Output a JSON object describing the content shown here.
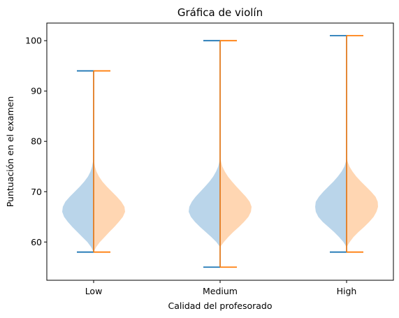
{
  "chart_data": {
    "type": "violin",
    "title": "Gráfica de violín",
    "xlabel": "Calidad del profesorado",
    "ylabel": "Puntuación en el examen",
    "categories": [
      "Low",
      "Medium",
      "High"
    ],
    "ylim": [
      52.4,
      103.5
    ],
    "yticks": [
      60,
      70,
      80,
      90,
      100
    ],
    "grid": false,
    "legend": "none",
    "series": [
      {
        "side": "left",
        "color": "#1f77b4",
        "fill": "#bad5ea",
        "violins": [
          {
            "min": 58,
            "max": 94,
            "profile": [
              [
                58,
                0.0
              ],
              [
                59,
                0.08
              ],
              [
                60,
                0.2
              ],
              [
                61,
                0.36
              ],
              [
                62,
                0.52
              ],
              [
                63,
                0.68
              ],
              [
                64,
                0.82
              ],
              [
                65,
                0.94
              ],
              [
                66,
                1.0
              ],
              [
                67,
                0.98
              ],
              [
                68,
                0.9
              ],
              [
                69,
                0.76
              ],
              [
                70,
                0.6
              ],
              [
                71,
                0.44
              ],
              [
                72,
                0.3
              ],
              [
                73,
                0.18
              ],
              [
                74,
                0.1
              ],
              [
                75,
                0.05
              ],
              [
                76,
                0.02
              ],
              [
                78,
                0.0
              ]
            ]
          },
          {
            "min": 55,
            "max": 100,
            "profile": [
              [
                59,
                0.0
              ],
              [
                60,
                0.12
              ],
              [
                61,
                0.28
              ],
              [
                62,
                0.46
              ],
              [
                63,
                0.64
              ],
              [
                64,
                0.8
              ],
              [
                65,
                0.93
              ],
              [
                66,
                1.0
              ],
              [
                67,
                0.98
              ],
              [
                68,
                0.9
              ],
              [
                69,
                0.78
              ],
              [
                70,
                0.63
              ],
              [
                71,
                0.48
              ],
              [
                72,
                0.34
              ],
              [
                73,
                0.22
              ],
              [
                74,
                0.13
              ],
              [
                75,
                0.06
              ],
              [
                76,
                0.02
              ],
              [
                77,
                0.0
              ]
            ]
          },
          {
            "min": 58,
            "max": 101,
            "profile": [
              [
                59,
                0.0
              ],
              [
                60,
                0.1
              ],
              [
                61,
                0.24
              ],
              [
                62,
                0.4
              ],
              [
                63,
                0.58
              ],
              [
                64,
                0.76
              ],
              [
                65,
                0.9
              ],
              [
                66,
                0.98
              ],
              [
                67,
                1.0
              ],
              [
                68,
                0.98
              ],
              [
                69,
                0.88
              ],
              [
                70,
                0.74
              ],
              [
                71,
                0.58
              ],
              [
                72,
                0.42
              ],
              [
                73,
                0.28
              ],
              [
                74,
                0.16
              ],
              [
                75,
                0.07
              ],
              [
                76,
                0.02
              ],
              [
                77,
                0.0
              ]
            ]
          }
        ]
      },
      {
        "side": "right",
        "color": "#ff7f0e",
        "fill": "#ffd6b2",
        "violins": [
          {
            "min": 58,
            "max": 94,
            "profile": [
              [
                58,
                0.0
              ],
              [
                59,
                0.08
              ],
              [
                60,
                0.2
              ],
              [
                61,
                0.35
              ],
              [
                62,
                0.5
              ],
              [
                63,
                0.66
              ],
              [
                64,
                0.8
              ],
              [
                65,
                0.93
              ],
              [
                66,
                1.0
              ],
              [
                67,
                0.98
              ],
              [
                68,
                0.88
              ],
              [
                69,
                0.74
              ],
              [
                70,
                0.58
              ],
              [
                71,
                0.42
              ],
              [
                72,
                0.28
              ],
              [
                73,
                0.17
              ],
              [
                74,
                0.09
              ],
              [
                75,
                0.04
              ],
              [
                76,
                0.01
              ],
              [
                77,
                0.0
              ]
            ]
          },
          {
            "min": 55,
            "max": 100,
            "profile": [
              [
                59,
                0.0
              ],
              [
                60,
                0.12
              ],
              [
                61,
                0.26
              ],
              [
                62,
                0.42
              ],
              [
                63,
                0.6
              ],
              [
                64,
                0.76
              ],
              [
                65,
                0.9
              ],
              [
                66,
                0.98
              ],
              [
                67,
                1.0
              ],
              [
                68,
                0.94
              ],
              [
                69,
                0.82
              ],
              [
                70,
                0.67
              ],
              [
                71,
                0.52
              ],
              [
                72,
                0.38
              ],
              [
                73,
                0.25
              ],
              [
                74,
                0.15
              ],
              [
                75,
                0.07
              ],
              [
                76,
                0.03
              ],
              [
                77,
                0.0
              ]
            ]
          },
          {
            "min": 58,
            "max": 101,
            "profile": [
              [
                59,
                0.0
              ],
              [
                60,
                0.1
              ],
              [
                61,
                0.22
              ],
              [
                62,
                0.38
              ],
              [
                63,
                0.56
              ],
              [
                64,
                0.72
              ],
              [
                65,
                0.86
              ],
              [
                66,
                0.95
              ],
              [
                67,
                1.0
              ],
              [
                68,
                0.99
              ],
              [
                69,
                0.92
              ],
              [
                70,
                0.78
              ],
              [
                71,
                0.62
              ],
              [
                72,
                0.46
              ],
              [
                73,
                0.31
              ],
              [
                74,
                0.19
              ],
              [
                75,
                0.09
              ],
              [
                76,
                0.03
              ],
              [
                77,
                0.0
              ]
            ]
          }
        ]
      }
    ]
  }
}
